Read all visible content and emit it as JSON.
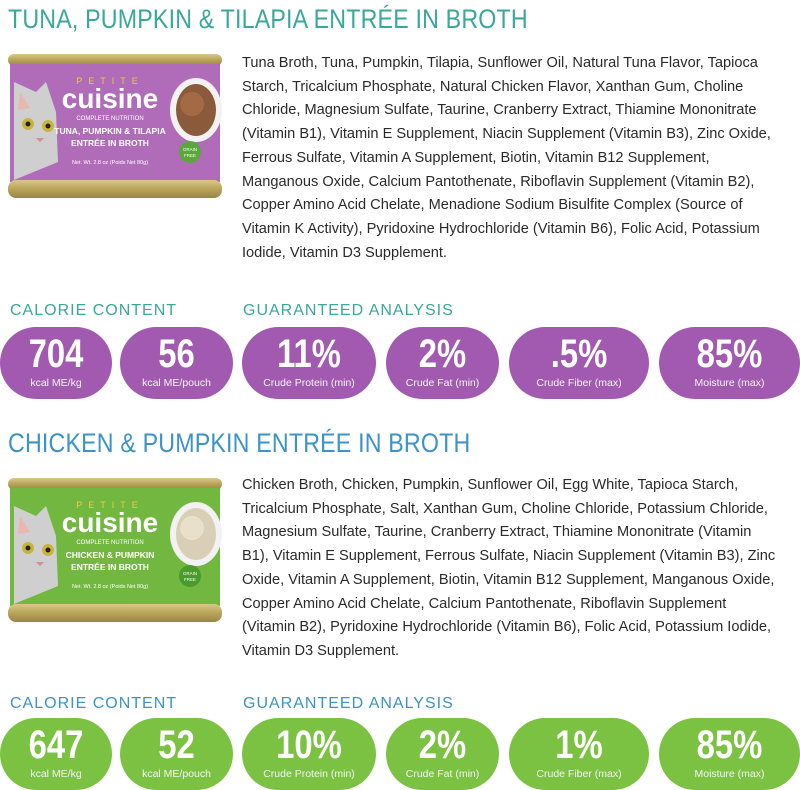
{
  "products": [
    {
      "title": "TUNA, PUMPKIN & TILAPIA ENTRÉE IN BROTH",
      "can": {
        "brand_small": "PETITE",
        "brand": "cuisine",
        "tagline": "COMPLETE NUTRITION",
        "product_line1": "TUNA, PUMPKIN & TILAPIA",
        "product_line2": "ENTRÉE IN BROTH",
        "net_wt": "Net. Wt. 2.8 oz (Poids Net 80g)",
        "badge_line1": "GRAIN",
        "badge_line2": "FREE",
        "label_color": "#b06cb8"
      },
      "ingredients": "Tuna Broth, Tuna, Pumpkin, Tilapia, Sunflower Oil, Natural Tuna Flavor, Tapioca Starch, Tricalcium Phosphate, Natural Chicken Flavor, Xanthan Gum, Choline Chloride, Magnesium Sulfate, Taurine, Cranberry Extract, Thiamine Mononitrate (Vitamin B1), Vitamin E Supplement, Niacin Supplement (Vitamin B3), Zinc Oxide, Ferrous Sulfate, Vitamin A Supplement, Biotin, Vitamin B12 Supplement, Manganous Oxide, Calcium Pantothenate, Riboflavin Supplement (Vitamin B2), Copper Amino Acid Chelate, Menadione Sodium Bisulfite Complex (Source of Vitamin K Activity), Pyridoxine Hydrochloride (Vitamin B6), Folic Acid, Potassium Iodide, Vitamin D3 Supplement.",
      "calorie_label": "CALORIE CONTENT",
      "analysis_label": "GUARANTEED ANALYSIS",
      "stats": [
        {
          "value": "704",
          "caption": "kcal ME/kg"
        },
        {
          "value": "56",
          "caption": "kcal ME/pouch"
        },
        {
          "value": "11%",
          "caption": "Crude Protein (min)"
        },
        {
          "value": "2%",
          "caption": "Crude Fat (min)"
        },
        {
          "value": ".5%",
          "caption": "Crude Fiber (max)"
        },
        {
          "value": "85%",
          "caption": "Moisture (max)"
        }
      ]
    },
    {
      "title": "CHICKEN & PUMPKIN ENTRÉE IN BROTH",
      "can": {
        "brand_small": "PETITE",
        "brand": "cuisine",
        "tagline": "COMPLETE NUTRITION",
        "product_line1": "CHICKEN & PUMPKIN",
        "product_line2": "ENTRÉE IN BROTH",
        "net_wt": "Net. Wt. 2.8 oz (Poids Net 80g)",
        "badge_line1": "GRAIN",
        "badge_line2": "FREE",
        "label_color": "#72b840"
      },
      "ingredients": "Chicken Broth, Chicken, Pumpkin, Sunflower Oil, Egg White, Tapioca Starch, Tricalcium Phosphate, Salt, Xanthan Gum, Choline Chloride, Potassium Chloride, Magnesium Sulfate, Taurine, Cranberry Extract, Thiamine Mononitrate (Vitamin B1), Vitamin E Supplement, Ferrous Sulfate, Niacin Supplement (Vitamin B3), Zinc Oxide, Vitamin A Supplement, Biotin, Vitamin B12 Supplement, Manganous Oxide, Copper Amino Acid Chelate, Calcium Pantothenate, Riboflavin Supplement (Vitamin B2), Pyridoxine Hydrochloride (Vitamin B6), Folic Acid, Potassium Iodide, Vitamin D3 Supplement.",
      "calorie_label": "CALORIE CONTENT",
      "analysis_label": "GUARANTEED ANALYSIS",
      "stats": [
        {
          "value": "647",
          "caption": "kcal ME/kg"
        },
        {
          "value": "52",
          "caption": "kcal ME/pouch"
        },
        {
          "value": "10%",
          "caption": "Crude Protein (min)"
        },
        {
          "value": "2%",
          "caption": "Crude Fat (min)"
        },
        {
          "value": "1%",
          "caption": "Crude Fiber (max)"
        },
        {
          "value": "85%",
          "caption": "Moisture (max)"
        }
      ]
    }
  ]
}
